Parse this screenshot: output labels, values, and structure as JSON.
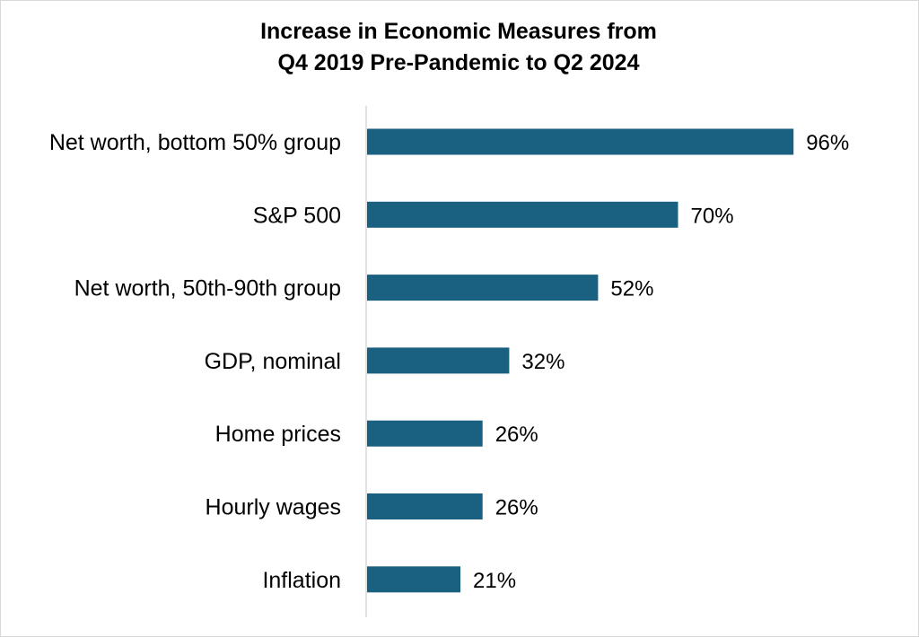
{
  "chart_data": {
    "type": "bar",
    "orientation": "horizontal",
    "title": "Increase in Economic Measures from",
    "subtitle": "Q4 2019 Pre-Pandemic to Q2 2024",
    "categories": [
      "Net worth, bottom 50% group",
      "S&P 500",
      "Net worth, 50th-90th group",
      "GDP, nominal",
      "Home prices",
      "Hourly wages",
      "Inflation"
    ],
    "values": [
      96,
      70,
      52,
      32,
      26,
      26,
      21
    ],
    "value_labels": [
      "96%",
      "70%",
      "52%",
      "32%",
      "26%",
      "26%",
      "21%"
    ],
    "xlim": [
      0,
      100
    ],
    "grid": false,
    "legend": "none",
    "bar_color": "#1a6080",
    "axis_color": "#d9d9d9"
  }
}
